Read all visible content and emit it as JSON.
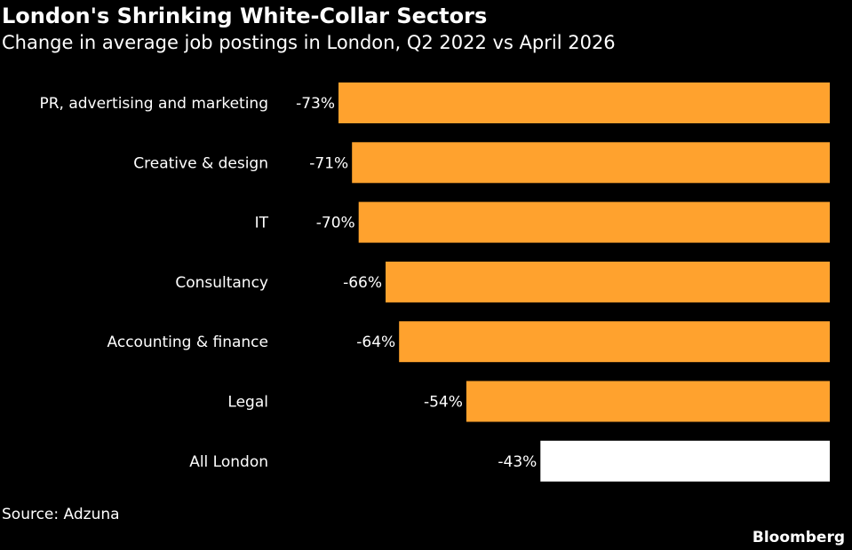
{
  "chart_data": {
    "type": "bar",
    "orientation": "horizontal",
    "title": "London's Shrinking White-Collar Sectors",
    "subtitle": "Change in average job postings in London, Q2 2022 vs April 2026",
    "categories": [
      "PR, advertising and marketing",
      "Creative & design",
      "IT",
      "Consultancy",
      "Accounting & finance",
      "Legal",
      "All London"
    ],
    "values": [
      -73,
      -71,
      -70,
      -66,
      -64,
      -54,
      -43
    ],
    "value_labels": [
      "-73%",
      "-71%",
      "-70%",
      "-66%",
      "-64%",
      "-54%",
      "-43%"
    ],
    "xlim": [
      -73,
      0
    ],
    "grid": false,
    "legend": "none",
    "colors": {
      "sector": "#FFA22E",
      "highlight": "#FFFFFF",
      "background": "#000000",
      "text": "#FFFFFF"
    }
  },
  "source": "Source: Adzuna",
  "brand": "Bloomberg"
}
